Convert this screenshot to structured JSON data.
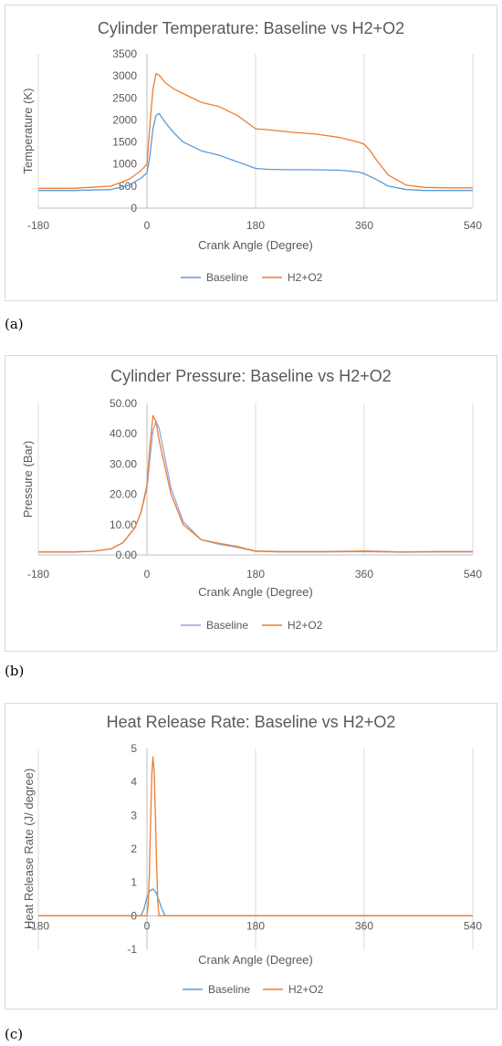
{
  "captions": [
    "(a)",
    "(b)",
    "(c)"
  ],
  "colors": {
    "baseline": "#5b9bd5",
    "h2o2": "#ed7d31",
    "grid": "#d9d9d9",
    "text": "#595959"
  },
  "chart_data": [
    {
      "type": "line",
      "title": "Cylinder Temperature: Baseline vs H2+O2",
      "xlabel": "Crank Angle (Degree)",
      "ylabel": "Temperature (K)",
      "xlim": [
        -180,
        540
      ],
      "ylim": [
        0,
        3500
      ],
      "xticks": [
        -180,
        0,
        180,
        360,
        540
      ],
      "xtick_labels": [
        "-180",
        "0",
        "180",
        "360",
        "540"
      ],
      "yticks": [
        0,
        500,
        1000,
        1500,
        2000,
        2500,
        3000,
        3500
      ],
      "ytick_labels": [
        "0",
        "500",
        "1000",
        "1500",
        "2000",
        "2500",
        "3000",
        "3500"
      ],
      "grid": "vertical",
      "legend": "bottom",
      "series": [
        {
          "name": "Baseline",
          "color": "#5b9bd5",
          "x": [
            -180,
            -120,
            -60,
            -30,
            -10,
            0,
            5,
            10,
            15,
            20,
            30,
            45,
            60,
            90,
            120,
            150,
            180,
            200,
            240,
            280,
            320,
            350,
            360,
            380,
            400,
            430,
            460,
            500,
            540
          ],
          "y": [
            400,
            400,
            420,
            520,
            680,
            800,
            1200,
            1800,
            2100,
            2150,
            1950,
            1700,
            1500,
            1300,
            1200,
            1050,
            900,
            880,
            870,
            870,
            860,
            820,
            780,
            650,
            500,
            420,
            400,
            400,
            400
          ]
        },
        {
          "name": "H2+O2",
          "color": "#ed7d31",
          "x": [
            -180,
            -120,
            -60,
            -30,
            -10,
            0,
            5,
            10,
            15,
            20,
            30,
            45,
            60,
            90,
            120,
            150,
            180,
            200,
            240,
            280,
            320,
            350,
            360,
            370,
            380,
            400,
            430,
            460,
            500,
            540
          ],
          "y": [
            450,
            450,
            500,
            650,
            850,
            1000,
            1900,
            2700,
            3050,
            3020,
            2850,
            2700,
            2600,
            2400,
            2300,
            2100,
            1800,
            1780,
            1720,
            1680,
            1600,
            1500,
            1450,
            1300,
            1100,
            750,
            520,
            470,
            460,
            460
          ]
        }
      ]
    },
    {
      "type": "line",
      "title": "Cylinder Pressure: Baseline vs H2+O2",
      "xlabel": "Crank Angle (Degree)",
      "ylabel": "Pressure (Bar)",
      "xlim": [
        -180,
        540
      ],
      "ylim": [
        0,
        50
      ],
      "xticks": [
        -180,
        0,
        180,
        360,
        540
      ],
      "xtick_labels": [
        "-180",
        "0",
        "180",
        "360",
        "540"
      ],
      "yticks": [
        0,
        10,
        20,
        30,
        40,
        50
      ],
      "ytick_labels": [
        "0.00",
        "10.00",
        "20.00",
        "30.00",
        "40.00",
        "50.00"
      ],
      "grid": "vertical",
      "legend": "bottom",
      "series": [
        {
          "name": "Baseline",
          "color": "#8faadc",
          "x": [
            -180,
            -120,
            -90,
            -60,
            -40,
            -20,
            -10,
            0,
            5,
            10,
            15,
            20,
            30,
            40,
            60,
            90,
            120,
            150,
            180,
            220,
            300,
            360,
            420,
            480,
            540
          ],
          "y": [
            1,
            1,
            1.2,
            2,
            4,
            9,
            14,
            22,
            32,
            41,
            44,
            42,
            32,
            22,
            11,
            5,
            3.5,
            2.5,
            1.2,
            1,
            1,
            1.1,
            0.9,
            1,
            1
          ]
        },
        {
          "name": "H2+O2",
          "color": "#ed7d31",
          "x": [
            -180,
            -120,
            -90,
            -60,
            -40,
            -20,
            -10,
            0,
            5,
            10,
            15,
            20,
            30,
            40,
            60,
            90,
            120,
            150,
            180,
            220,
            300,
            360,
            420,
            480,
            540
          ],
          "y": [
            1,
            1,
            1.2,
            2,
            4,
            9,
            14,
            23,
            36,
            46,
            44,
            38,
            29,
            20,
            10,
            5,
            3.8,
            2.8,
            1.3,
            1.1,
            1.1,
            1.3,
            1,
            1.1,
            1.1
          ]
        }
      ]
    },
    {
      "type": "line",
      "title": "Heat Release Rate: Baseline vs H2+O2",
      "xlabel": "Crank Angle (Degree)",
      "ylabel": "Heat Release Rate (J/ degree)",
      "xlim": [
        -180,
        540
      ],
      "ylim": [
        -1,
        5
      ],
      "xticks": [
        -180,
        0,
        180,
        360,
        540
      ],
      "xtick_labels": [
        "-180",
        "0",
        "180",
        "360",
        "540"
      ],
      "yticks": [
        -1,
        0,
        1,
        2,
        3,
        4,
        5
      ],
      "ytick_labels": [
        "-1",
        "0",
        "1",
        "2",
        "3",
        "4",
        "5"
      ],
      "grid": "vertical",
      "legend": "bottom",
      "series": [
        {
          "name": "Baseline",
          "color": "#5b9bd5",
          "x": [
            -180,
            -10,
            -5,
            0,
            5,
            10,
            15,
            20,
            25,
            30,
            540
          ],
          "y": [
            0,
            0,
            0.2,
            0.55,
            0.75,
            0.8,
            0.7,
            0.45,
            0.2,
            0,
            0
          ]
        },
        {
          "name": "H2+O2",
          "color": "#ed7d31",
          "x": [
            -180,
            0,
            2,
            4,
            6,
            8,
            10,
            12,
            14,
            16,
            18,
            20,
            540
          ],
          "y": [
            0,
            0,
            0.3,
            1.2,
            2.8,
            4.2,
            4.75,
            4.3,
            3.0,
            1.5,
            0.4,
            0,
            0
          ]
        }
      ]
    }
  ]
}
